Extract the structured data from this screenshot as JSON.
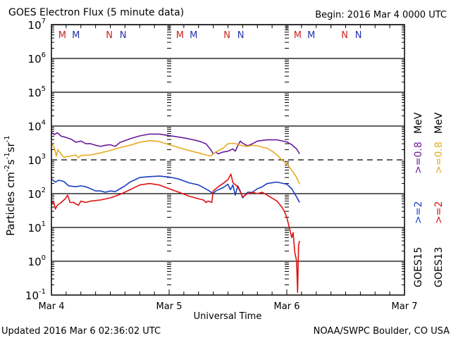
{
  "chart_data": {
    "type": "line",
    "title": "GOES Electron Flux (5 minute data)",
    "begin_label": "Begin: 2016 Mar 4 0000 UTC",
    "xlabel": "Universal Time",
    "ylabel": "Particles cm⁻²s⁻¹sr⁻¹",
    "ylabel_parts": {
      "base": "Particles cm",
      "e1": "-2",
      "s": "s",
      "e2": "-1",
      "sr": "sr",
      "e3": "-1"
    },
    "yscale": "log",
    "ylim": [
      0.1,
      10000000
    ],
    "y_ticks": [
      {
        "value": 10000000,
        "base": "10",
        "exp": "7"
      },
      {
        "value": 1000000,
        "base": "10",
        "exp": "6"
      },
      {
        "value": 100000,
        "base": "10",
        "exp": "5"
      },
      {
        "value": 10000,
        "base": "10",
        "exp": "4"
      },
      {
        "value": 1000,
        "base": "10",
        "exp": "3"
      },
      {
        "value": 100,
        "base": "10",
        "exp": "2"
      },
      {
        "value": 10,
        "base": "10",
        "exp": "1"
      },
      {
        "value": 1,
        "base": "10",
        "exp": "0"
      },
      {
        "value": 0.1,
        "base": "10",
        "exp": "-1"
      }
    ],
    "xlim_hours": [
      0,
      72
    ],
    "x_ticks": [
      {
        "hours": 0,
        "label": "Mar 4"
      },
      {
        "hours": 24,
        "label": "Mar 5"
      },
      {
        "hours": 48,
        "label": "Mar 6"
      },
      {
        "hours": 72,
        "label": "Mar 7"
      }
    ],
    "threshold_line": {
      "value": 1000,
      "style": "dashed"
    },
    "grid_lines": [
      10000000,
      1000000,
      100000,
      10000,
      100,
      10,
      1
    ],
    "markers": [
      {
        "hours": 2.2,
        "label": "M",
        "color": "#cc2222"
      },
      {
        "hours": 5.0,
        "label": "M",
        "color": "#2233aa"
      },
      {
        "hours": 11.8,
        "label": "N",
        "color": "#cc2222"
      },
      {
        "hours": 14.6,
        "label": "N",
        "color": "#2233aa"
      },
      {
        "hours": 26.2,
        "label": "M",
        "color": "#cc2222"
      },
      {
        "hours": 29.0,
        "label": "M",
        "color": "#2233aa"
      },
      {
        "hours": 35.8,
        "label": "N",
        "color": "#cc2222"
      },
      {
        "hours": 38.6,
        "label": "N",
        "color": "#2233aa"
      },
      {
        "hours": 50.2,
        "label": "M",
        "color": "#cc2222"
      },
      {
        "hours": 53.0,
        "label": "M",
        "color": "#2233aa"
      },
      {
        "hours": 59.8,
        "label": "N",
        "color": "#cc2222"
      },
      {
        "hours": 62.6,
        "label": "N",
        "color": "#2233aa"
      }
    ],
    "legend": {
      "placement": "right",
      "energy_unit": "MeV",
      "columns": [
        {
          "satellite": "GOES15",
          "low": ">=2",
          "high": ">=0.8",
          "low_color": "#1a3fc0",
          "high_color": "#6a1a9a"
        },
        {
          "satellite": "GOES13",
          "low": ">=2",
          "high": ">=0.8",
          "low_color": "#e01010",
          "high_color": "#e8aa20"
        }
      ]
    },
    "series": [
      {
        "name": "GOES15 >=0.8 MeV",
        "color": "#6a1a9a",
        "points": [
          [
            0,
            6500
          ],
          [
            0.6,
            5600
          ],
          [
            1.2,
            6300
          ],
          [
            2,
            5000
          ],
          [
            3,
            4600
          ],
          [
            4,
            4100
          ],
          [
            5,
            3300
          ],
          [
            6,
            3600
          ],
          [
            7,
            3000
          ],
          [
            8,
            3000
          ],
          [
            9,
            2700
          ],
          [
            10,
            2500
          ],
          [
            11,
            2700
          ],
          [
            12,
            2800
          ],
          [
            13,
            2500
          ],
          [
            14,
            3300
          ],
          [
            15,
            3700
          ],
          [
            16,
            4200
          ],
          [
            18,
            5100
          ],
          [
            20,
            5800
          ],
          [
            22,
            5800
          ],
          [
            24,
            5200
          ],
          [
            26,
            4700
          ],
          [
            28,
            4200
          ],
          [
            30,
            3600
          ],
          [
            31.5,
            3000
          ],
          [
            32.5,
            2000
          ],
          [
            33,
            1500
          ],
          [
            33.5,
            1700
          ],
          [
            34,
            1500
          ],
          [
            35,
            1700
          ],
          [
            36,
            1800
          ],
          [
            37,
            2100
          ],
          [
            37.5,
            1800
          ],
          [
            38,
            2600
          ],
          [
            38.5,
            3600
          ],
          [
            39,
            3100
          ],
          [
            40,
            2600
          ],
          [
            41,
            3000
          ],
          [
            42,
            3600
          ],
          [
            44,
            3900
          ],
          [
            46,
            3900
          ],
          [
            48,
            3400
          ],
          [
            49,
            2800
          ],
          [
            50,
            2100
          ],
          [
            50.6,
            1500
          ]
        ]
      },
      {
        "name": "GOES13 >=0.8 MeV",
        "color": "#e8aa20",
        "points": [
          [
            0,
            3000
          ],
          [
            0.5,
            2400
          ],
          [
            1,
            1300
          ],
          [
            1.3,
            2000
          ],
          [
            1.8,
            1600
          ],
          [
            2.5,
            1200
          ],
          [
            4,
            1300
          ],
          [
            5,
            1400
          ],
          [
            5.5,
            1150
          ],
          [
            6,
            1350
          ],
          [
            8,
            1400
          ],
          [
            10,
            1600
          ],
          [
            12,
            1900
          ],
          [
            14,
            2300
          ],
          [
            16,
            2700
          ],
          [
            18,
            3300
          ],
          [
            20,
            3700
          ],
          [
            22,
            3500
          ],
          [
            24,
            2800
          ],
          [
            26,
            2300
          ],
          [
            28,
            1900
          ],
          [
            30,
            1600
          ],
          [
            31.5,
            1400
          ],
          [
            32.5,
            1300
          ],
          [
            33.5,
            1700
          ],
          [
            35,
            2200
          ],
          [
            36,
            3000
          ],
          [
            37,
            3100
          ],
          [
            38,
            2900
          ],
          [
            39,
            2600
          ],
          [
            40,
            2500
          ],
          [
            41,
            2700
          ],
          [
            42,
            2600
          ],
          [
            44,
            2200
          ],
          [
            45,
            1800
          ],
          [
            46,
            1400
          ],
          [
            47,
            1000
          ],
          [
            48,
            750
          ],
          [
            49,
            500
          ],
          [
            50,
            300
          ],
          [
            50.6,
            190
          ]
        ]
      },
      {
        "name": "GOES15 >=2 MeV",
        "color": "#1a3fc0",
        "points": [
          [
            0,
            270
          ],
          [
            0.8,
            220
          ],
          [
            1.5,
            250
          ],
          [
            2.5,
            230
          ],
          [
            3.5,
            170
          ],
          [
            5,
            160
          ],
          [
            6,
            170
          ],
          [
            7,
            160
          ],
          [
            8,
            140
          ],
          [
            9,
            120
          ],
          [
            10,
            120
          ],
          [
            11,
            110
          ],
          [
            12,
            120
          ],
          [
            13,
            115
          ],
          [
            14,
            140
          ],
          [
            15,
            170
          ],
          [
            16,
            220
          ],
          [
            18,
            300
          ],
          [
            20,
            320
          ],
          [
            22,
            330
          ],
          [
            24,
            310
          ],
          [
            26,
            270
          ],
          [
            28,
            210
          ],
          [
            30,
            180
          ],
          [
            32,
            125
          ],
          [
            33,
            100
          ],
          [
            33.5,
            120
          ],
          [
            35,
            150
          ],
          [
            36,
            190
          ],
          [
            36.5,
            130
          ],
          [
            37,
            180
          ],
          [
            37.5,
            90
          ],
          [
            38,
            170
          ],
          [
            38.5,
            120
          ],
          [
            39,
            75
          ],
          [
            40,
            110
          ],
          [
            41,
            110
          ],
          [
            42,
            140
          ],
          [
            43,
            160
          ],
          [
            44,
            200
          ],
          [
            46,
            220
          ],
          [
            48,
            190
          ],
          [
            49,
            140
          ],
          [
            50,
            80
          ],
          [
            50.6,
            55
          ]
        ]
      },
      {
        "name": "GOES13 >=2 MeV",
        "color": "#e01010",
        "points": [
          [
            0,
            50
          ],
          [
            0.4,
            60
          ],
          [
            0.8,
            35
          ],
          [
            1.2,
            45
          ],
          [
            2,
            55
          ],
          [
            2.8,
            70
          ],
          [
            3.3,
            90
          ],
          [
            3.8,
            55
          ],
          [
            4.5,
            55
          ],
          [
            5.5,
            45
          ],
          [
            6,
            60
          ],
          [
            7,
            55
          ],
          [
            8,
            60
          ],
          [
            10,
            65
          ],
          [
            12,
            75
          ],
          [
            14,
            95
          ],
          [
            16,
            130
          ],
          [
            18,
            180
          ],
          [
            20,
            200
          ],
          [
            22,
            180
          ],
          [
            24,
            140
          ],
          [
            26,
            110
          ],
          [
            28,
            85
          ],
          [
            30,
            70
          ],
          [
            31,
            65
          ],
          [
            31.5,
            55
          ],
          [
            32,
            60
          ],
          [
            32.7,
            55
          ],
          [
            33,
            120
          ],
          [
            34,
            160
          ],
          [
            35,
            200
          ],
          [
            36,
            260
          ],
          [
            36.6,
            380
          ],
          [
            37,
            210
          ],
          [
            38,
            160
          ],
          [
            39,
            80
          ],
          [
            40,
            100
          ],
          [
            41,
            110
          ],
          [
            42,
            100
          ],
          [
            43,
            110
          ],
          [
            44,
            90
          ],
          [
            46,
            60
          ],
          [
            47,
            40
          ],
          [
            47.5,
            30
          ],
          [
            48,
            20
          ],
          [
            48.5,
            10
          ],
          [
            49,
            5
          ],
          [
            49.3,
            7
          ],
          [
            49.6,
            2
          ],
          [
            50,
            1
          ],
          [
            50.2,
            0.12
          ],
          [
            50.4,
            3
          ],
          [
            50.6,
            4
          ]
        ]
      }
    ]
  },
  "footer": {
    "updated": "Updated 2016 Mar  6 02:36:02 UTC",
    "credit": "NOAA/SWPC Boulder, CO USA"
  }
}
